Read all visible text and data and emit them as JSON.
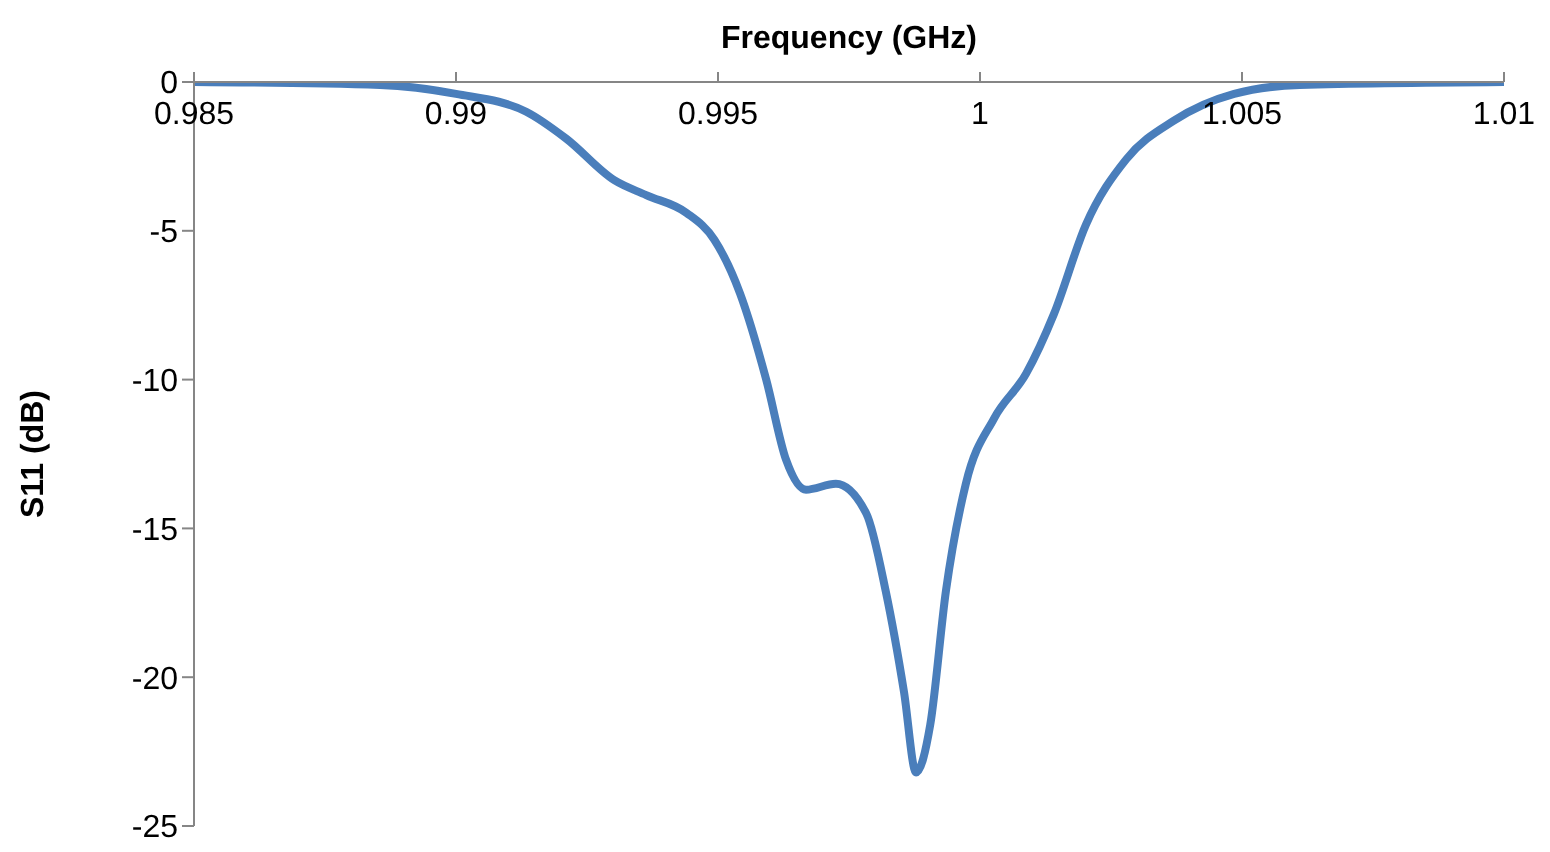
{
  "chart_data": {
    "type": "line",
    "xlabel": "Frequency (GHz)",
    "ylabel": "S11 (dB)",
    "xlim": [
      0.985,
      1.01
    ],
    "xticks": [
      0.985,
      0.99,
      0.995,
      1,
      1.005,
      1.01
    ],
    "ylim": [
      -25,
      0
    ],
    "yticks": [
      0,
      -5,
      -10,
      -15,
      -20,
      -25
    ],
    "grid": false,
    "legend": false,
    "marker": "none",
    "line_style": "solid",
    "x": [
      0.985,
      0.98855,
      0.99,
      0.99134,
      0.9921,
      0.99302,
      0.99363,
      0.9944,
      0.99493,
      0.99542,
      0.99592,
      0.9963,
      0.99668,
      0.99725,
      0.99783,
      0.9982,
      0.99855,
      0.99878,
      0.99905,
      0.99935,
      0.99973,
      1.00027,
      1.00088,
      1.00141,
      1.00202,
      1.00279,
      1.0037,
      1.00485,
      1.0061,
      1.01
    ],
    "series": [
      {
        "color": "#4a7ebb",
        "values": [
          0,
          -0.1,
          -0.4,
          -1.0,
          -1.9,
          -3.3,
          -3.8,
          -4.4,
          -5.3,
          -7.1,
          -10.0,
          -12.7,
          -13.7,
          -13.5,
          -14.5,
          -17.1,
          -20.5,
          -23.2,
          -21.6,
          -17.1,
          -13.5,
          -11.3,
          -9.8,
          -7.8,
          -4.8,
          -2.6,
          -1.3,
          -0.4,
          -0.1,
          0
        ]
      }
    ]
  }
}
